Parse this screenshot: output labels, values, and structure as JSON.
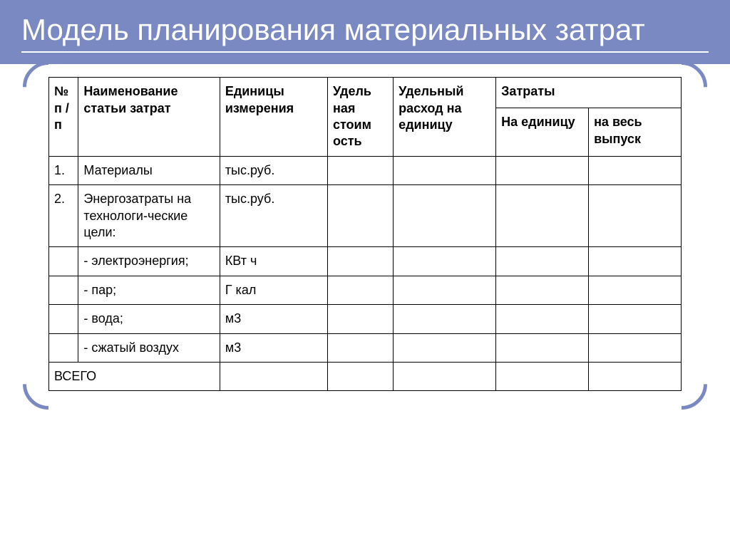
{
  "title": "Модель планирования материальных затрат",
  "colors": {
    "header_bg": "#7a89c2",
    "title_text": "#ffffff",
    "border": "#000000",
    "frame": "#7a89c2"
  },
  "table": {
    "type": "table",
    "columns": {
      "num": "№ п / п",
      "name": "Наименование статьи затрат",
      "unit": "Единицы измерения",
      "udcost": "Удель\nная стоим\nость",
      "udrash": "Удельный расход на единицу",
      "costs_group": "Затраты",
      "per_unit": "На единицу",
      "total": "на весь выпуск"
    },
    "rows": [
      {
        "num": "1.",
        "name": "Материалы",
        "unit": "тыс.руб.",
        "udcost": "",
        "udrash": "",
        "per_unit": "",
        "total": ""
      },
      {
        "num": "2.",
        "name": "Энергозатраты на технологи-ческие цели:",
        "unit": "тыс.руб.",
        "udcost": "",
        "udrash": "",
        "per_unit": "",
        "total": ""
      },
      {
        "num": "",
        "name": "- электроэнергия;",
        "unit": "КВт ч",
        "udcost": "",
        "udrash": "",
        "per_unit": "",
        "total": ""
      },
      {
        "num": "",
        "name": "- пар;",
        "unit": "Г кал",
        "udcost": "",
        "udrash": "",
        "per_unit": "",
        "total": ""
      },
      {
        "num": "",
        "name": "- вода;",
        "unit": "м3",
        "udcost": "",
        "udrash": "",
        "per_unit": "",
        "total": ""
      },
      {
        "num": "",
        "name": "- сжатый воздух",
        "unit": "м3",
        "udcost": "",
        "udrash": "",
        "per_unit": "",
        "total": ""
      }
    ],
    "footer": {
      "label": "ВСЕГО",
      "unit": "",
      "udcost": "",
      "udrash": "",
      "per_unit": "",
      "total": ""
    }
  }
}
